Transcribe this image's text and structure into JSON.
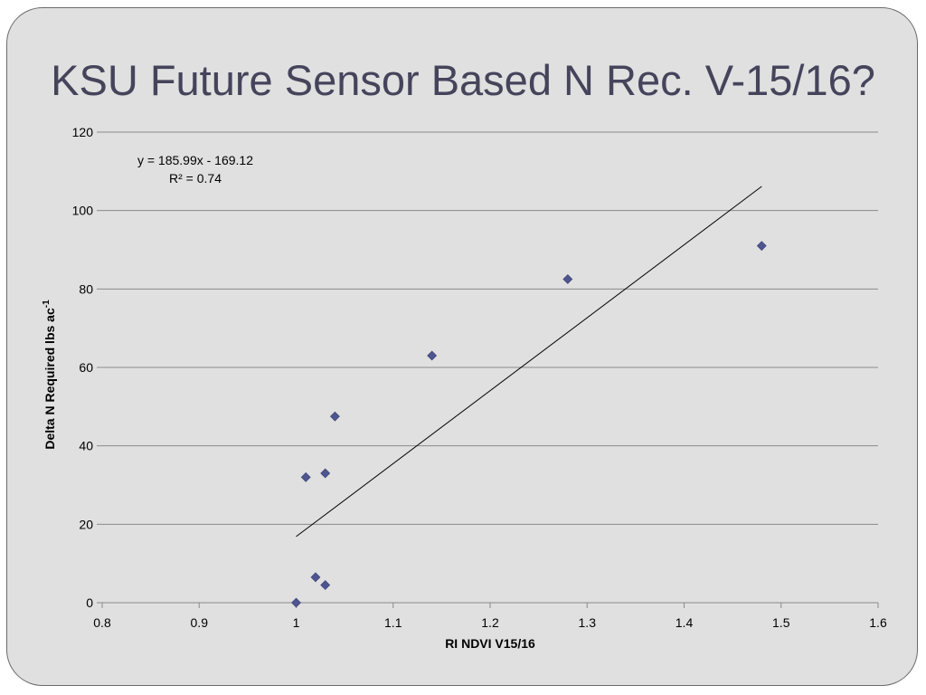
{
  "slide": {
    "title": "KSU Future Sensor Based N Rec. V-15/16?"
  },
  "chart_data": {
    "type": "scatter",
    "title": "",
    "xlabel": "RI NDVI V15/16",
    "ylabel": "Delta N Required lbs ac",
    "ylabel_superscript": "-1",
    "xlim": [
      0.8,
      1.6
    ],
    "ylim": [
      0,
      120
    ],
    "xticks": [
      "0.8",
      "0.9",
      "1",
      "1.1",
      "1.2",
      "1.3",
      "1.4",
      "1.5",
      "1.6"
    ],
    "yticks": [
      "0",
      "20",
      "40",
      "60",
      "80",
      "100",
      "120"
    ],
    "grid": "horizontal",
    "legend": "none",
    "marker": "diamond",
    "marker_color": "#4e5590",
    "series": [
      {
        "x": [
          1.0,
          1.01,
          1.02,
          1.03,
          1.03,
          1.04,
          1.14,
          1.28,
          1.48
        ],
        "y": [
          0,
          32,
          6.5,
          33,
          4.5,
          47.5,
          63,
          82.5,
          91
        ]
      }
    ],
    "trendline": {
      "slope": 185.99,
      "intercept": -169.12,
      "x_range": [
        1.0,
        1.48
      ],
      "color": "#000000"
    },
    "annotations": {
      "equation": "y = 185.99x - 169.12",
      "r_squared": "R² = 0.74"
    }
  }
}
